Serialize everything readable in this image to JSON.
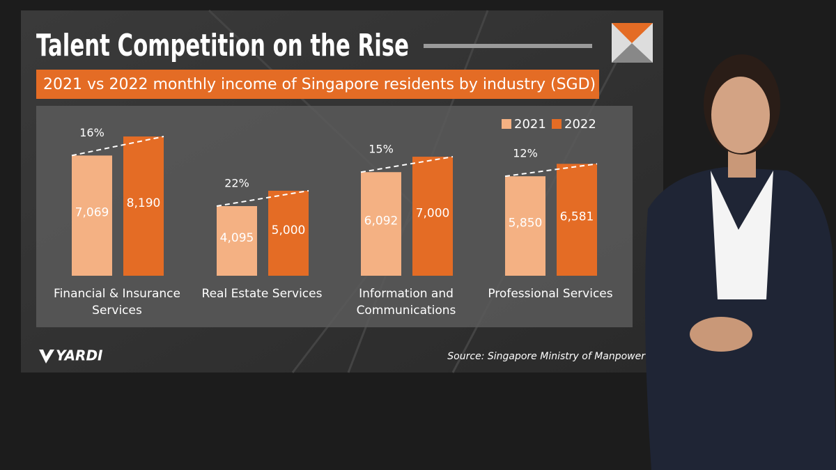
{
  "title": "Talent Competition on the Rise",
  "brand": "YARDI",
  "source": "Source: Singapore Ministry of Manpower",
  "chart_data": {
    "type": "bar",
    "title": "2021 vs 2022 monthly income of Singapore residents by industry (SGD)",
    "categories": [
      "Financial & Insurance Services",
      "Real Estate Services",
      "Information and Communications",
      "Professional Services"
    ],
    "series": [
      {
        "name": "2021",
        "color": "#f4b183",
        "values": [
          7069,
          4095,
          6092,
          5850
        ],
        "value_labels": [
          "7,069",
          "4,095",
          "6,092",
          "5,850"
        ]
      },
      {
        "name": "2022",
        "color": "#e46c25",
        "values": [
          8190,
          5000,
          7000,
          6581
        ],
        "value_labels": [
          "8,190",
          "5,000",
          "7,000",
          "6,581"
        ]
      }
    ],
    "annotations": [
      "16%",
      "22%",
      "15%",
      "12%"
    ],
    "legend": "top-right"
  }
}
